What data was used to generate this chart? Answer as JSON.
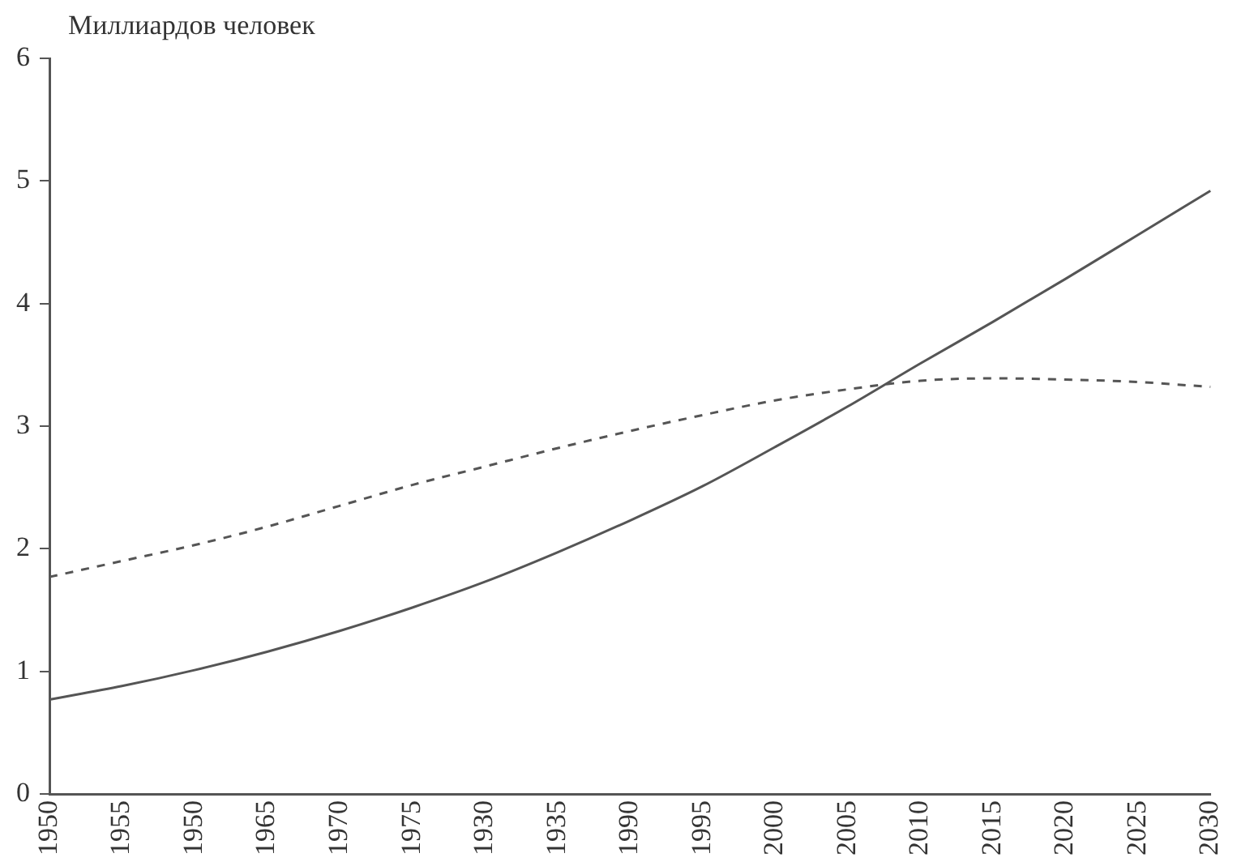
{
  "chart_data": {
    "type": "line",
    "ylabel": "Миллиардов человек",
    "categories": [
      "1950",
      "1955",
      "1950",
      "1965",
      "1970",
      "1975",
      "1930",
      "1935",
      "1990",
      "1995",
      "2000",
      "2005",
      "2010",
      "2015",
      "2020",
      "2025",
      "2030"
    ],
    "series": [
      {
        "color": "#555555",
        "line_style": "solid",
        "values": [
          0.77,
          0.88,
          1.01,
          1.16,
          1.33,
          1.52,
          1.73,
          1.97,
          2.23,
          2.51,
          2.83,
          3.16,
          3.51,
          3.85,
          4.2,
          4.56,
          4.92
        ]
      },
      {
        "color": "#555555",
        "line_style": "dashed",
        "values": [
          1.77,
          1.9,
          2.03,
          2.18,
          2.35,
          2.52,
          2.67,
          2.82,
          2.96,
          3.09,
          3.21,
          3.3,
          3.37,
          3.39,
          3.38,
          3.36,
          3.32
        ]
      }
    ],
    "ylim": [
      0,
      6
    ],
    "yticks": [
      0,
      1,
      2,
      3,
      4,
      5,
      6
    ],
    "grid": false,
    "legend": false,
    "marker": "none"
  }
}
